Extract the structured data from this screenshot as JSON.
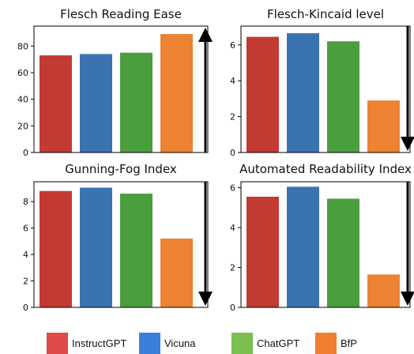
{
  "chart_data": [
    {
      "type": "bar",
      "title": "Flesch Reading Ease",
      "categories": [
        "InstructGPT",
        "Vicuna",
        "ChatGPT",
        "BfP"
      ],
      "values": [
        73,
        74,
        75,
        89
      ],
      "ylim": [
        0,
        95
      ],
      "yticks": [
        "0",
        "20",
        "40",
        "60",
        "80"
      ],
      "ytick_values": [
        0,
        20,
        40,
        60,
        80
      ],
      "arrow": "up"
    },
    {
      "type": "bar",
      "title": "Flesch-Kincaid level",
      "categories": [
        "InstructGPT",
        "Vicuna",
        "ChatGPT",
        "BfP"
      ],
      "values": [
        6.45,
        6.65,
        6.2,
        2.9
      ],
      "ylim": [
        0,
        7.05
      ],
      "yticks": [
        "0",
        "2",
        "4",
        "6"
      ],
      "ytick_values": [
        0,
        2,
        4,
        6
      ],
      "arrow": "down"
    },
    {
      "type": "bar",
      "title": "Gunning-Fog Index",
      "categories": [
        "InstructGPT",
        "Vicuna",
        "ChatGPT",
        "BfP"
      ],
      "values": [
        8.8,
        9.05,
        8.6,
        5.2
      ],
      "ylim": [
        0,
        9.5
      ],
      "yticks": [
        "0",
        "2",
        "4",
        "6",
        "8"
      ],
      "ytick_values": [
        0,
        2,
        4,
        6,
        8
      ],
      "arrow": "down"
    },
    {
      "type": "bar",
      "title": "Automated Readability Index",
      "categories": [
        "InstructGPT",
        "Vicuna",
        "ChatGPT",
        "BfP"
      ],
      "values": [
        5.55,
        6.05,
        5.45,
        1.65
      ],
      "ylim": [
        0,
        6.3
      ],
      "yticks": [
        "0",
        "2",
        "4",
        "6"
      ],
      "ytick_values": [
        0,
        2,
        4,
        6
      ],
      "arrow": "down"
    }
  ],
  "colors": {
    "InstructGPT": "#c33a32",
    "Vicuna": "#3a73b0",
    "ChatGPT": "#4a9e3e",
    "BfP": "#ec8232"
  },
  "legend": [
    {
      "label": "InstructGPT",
      "color": "#e04a48"
    },
    {
      "label": "Vicuna",
      "color": "#3b7fdc"
    },
    {
      "label": "ChatGPT",
      "color": "#7bbf4f"
    },
    {
      "label": "BfP",
      "color": "#f07e2f"
    }
  ]
}
